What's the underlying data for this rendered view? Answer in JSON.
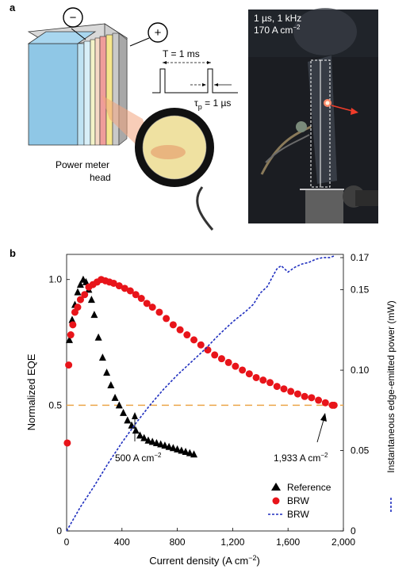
{
  "panel_a": {
    "label": "a",
    "minus_symbol": "−",
    "plus_symbol": "+",
    "period_label": "T = 1 ms",
    "pulse_width_label": "τ",
    "pulse_width_sub": "p",
    "pulse_width_value": " = 1 µs",
    "meter_label_line1": "Power meter",
    "meter_label_line2": "head",
    "photo_line1": "1 µs, 1 kHz",
    "photo_line2": "170 A cm",
    "photo_line2_sup": "−2"
  },
  "panel_b": {
    "label": "b",
    "annotation_left": "500 A cm",
    "annotation_left_sup": "−2",
    "annotation_right": "1,933 A cm",
    "annotation_right_sup": "−2"
  },
  "chart_data": {
    "type": "scatter",
    "xlabel": "Current density (A cm",
    "xlabel_sup": "−2",
    "xlabel_end": ")",
    "ylabel": "Normalized EQE",
    "y2label": "Instantaneous edge-emitted power (mW)",
    "xlim": [
      0,
      2000
    ],
    "ylim": [
      0,
      1.1
    ],
    "y2lim": [
      0,
      0.172
    ],
    "xticks": [
      0,
      400,
      800,
      1200,
      1600,
      2000
    ],
    "xtick_labels": [
      "0",
      "400",
      "800",
      "1,200",
      "1,600",
      "2,000"
    ],
    "yticks": [
      0,
      0.5,
      1.0
    ],
    "ytick_labels": [
      "0",
      "0.5",
      "1.0"
    ],
    "y2ticks": [
      0,
      0.05,
      0.1,
      0.15,
      0.17
    ],
    "y2tick_labels": [
      "0",
      "0.05",
      "0.10",
      "0.15",
      "0.17"
    ],
    "reference_line": 0.5,
    "legend": {
      "placement": "bottom-right",
      "entries": [
        "Reference",
        "BRW",
        "BRW"
      ]
    },
    "series": [
      {
        "name": "Reference",
        "axis": "left",
        "marker": "triangle",
        "color": "#000000",
        "x": [
          20,
          40,
          60,
          80,
          100,
          120,
          140,
          160,
          180,
          200,
          230,
          260,
          290,
          320,
          350,
          380,
          410,
          440,
          470,
          500,
          530,
          560,
          590,
          620,
          650,
          680,
          710,
          740,
          770,
          800,
          830,
          860,
          890,
          920
        ],
        "y": [
          0.76,
          0.84,
          0.9,
          0.95,
          0.98,
          1.0,
          0.99,
          0.96,
          0.92,
          0.86,
          0.77,
          0.69,
          0.63,
          0.58,
          0.53,
          0.5,
          0.47,
          0.44,
          0.42,
          0.4,
          0.38,
          0.37,
          0.36,
          0.355,
          0.35,
          0.345,
          0.34,
          0.335,
          0.33,
          0.325,
          0.32,
          0.315,
          0.31,
          0.305
        ]
      },
      {
        "name": "BRW",
        "axis": "left",
        "marker": "circle",
        "color": "#e8141a",
        "x": [
          5,
          15,
          30,
          45,
          60,
          80,
          100,
          130,
          160,
          190,
          220,
          250,
          280,
          310,
          340,
          380,
          420,
          460,
          500,
          540,
          580,
          620,
          670,
          720,
          770,
          820,
          870,
          920,
          970,
          1020,
          1070,
          1120,
          1170,
          1220,
          1270,
          1320,
          1370,
          1420,
          1470,
          1520,
          1570,
          1620,
          1670,
          1720,
          1770,
          1820,
          1870,
          1920,
          1933
        ],
        "y": [
          0.35,
          0.66,
          0.78,
          0.82,
          0.87,
          0.89,
          0.92,
          0.94,
          0.97,
          0.98,
          0.99,
          1.0,
          0.995,
          0.99,
          0.985,
          0.975,
          0.965,
          0.955,
          0.94,
          0.925,
          0.905,
          0.89,
          0.87,
          0.845,
          0.82,
          0.8,
          0.78,
          0.76,
          0.74,
          0.72,
          0.7,
          0.685,
          0.67,
          0.655,
          0.64,
          0.625,
          0.61,
          0.6,
          0.59,
          0.575,
          0.565,
          0.555,
          0.545,
          0.535,
          0.53,
          0.52,
          0.51,
          0.5,
          0.5
        ]
      },
      {
        "name": "BRW",
        "axis": "right",
        "marker": "dashed-line",
        "color": "#1f2fbf",
        "x": [
          0,
          100,
          200,
          300,
          400,
          500,
          600,
          700,
          800,
          900,
          1000,
          1100,
          1200,
          1300,
          1350,
          1400,
          1450,
          1500,
          1520,
          1550,
          1600,
          1650,
          1700,
          1750,
          1800,
          1850,
          1900,
          1933
        ],
        "y": [
          0.0,
          0.015,
          0.028,
          0.042,
          0.055,
          0.067,
          0.078,
          0.088,
          0.097,
          0.105,
          0.113,
          0.122,
          0.13,
          0.137,
          0.141,
          0.148,
          0.152,
          0.16,
          0.163,
          0.165,
          0.161,
          0.164,
          0.166,
          0.167,
          0.169,
          0.17,
          0.17,
          0.171
        ]
      }
    ]
  }
}
